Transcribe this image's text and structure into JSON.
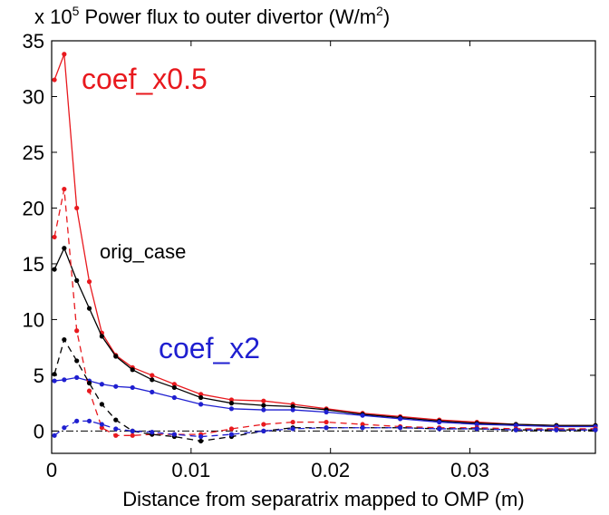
{
  "chart_data": {
    "type": "line",
    "title_parts": [
      "x 10",
      "5",
      " Power flux to outer divertor (W/m",
      "2",
      ")"
    ],
    "x_label": "Distance from separatrix mapped to OMP (m)",
    "x": [
      0.0002,
      0.0009,
      0.0018,
      0.0027,
      0.0036,
      0.0046,
      0.0058,
      0.0072,
      0.0088,
      0.0107,
      0.0129,
      0.0152,
      0.0173,
      0.0197,
      0.0223,
      0.025,
      0.0278,
      0.0305,
      0.0333,
      0.0362,
      0.039
    ],
    "series": [
      {
        "color": "#e8191e",
        "dashed": false,
        "values": [
          31.5,
          33.8,
          20,
          13.4,
          8.8,
          6.8,
          5.7,
          5.0,
          4.2,
          3.3,
          2.8,
          2.7,
          2.4,
          2.0,
          1.6,
          1.3,
          1.0,
          0.8,
          0.6,
          0.5,
          0.5
        ]
      },
      {
        "color": "#000000",
        "dashed": false,
        "values": [
          14.5,
          16.4,
          13.5,
          11,
          8.5,
          6.7,
          5.5,
          4.6,
          3.9,
          3.0,
          2.5,
          2.3,
          2.2,
          1.9,
          1.5,
          1.2,
          0.9,
          0.7,
          0.6,
          0.5,
          0.5
        ]
      },
      {
        "color": "#1f1fd0",
        "dashed": false,
        "values": [
          4.5,
          4.6,
          4.8,
          4.5,
          4.2,
          4.0,
          3.9,
          3.5,
          3.0,
          2.4,
          2.0,
          1.9,
          1.9,
          1.7,
          1.4,
          1.1,
          0.8,
          0.6,
          0.5,
          0.4,
          0.4
        ]
      },
      {
        "color": "#e8191e",
        "dashed": true,
        "values": [
          17.4,
          21.7,
          9,
          3.6,
          0.3,
          -0.4,
          -0.4,
          -0.3,
          -0.3,
          -0.3,
          0.2,
          0.6,
          0.8,
          0.8,
          0.6,
          0.4,
          0.3,
          0.3,
          0.2,
          0.2,
          0.2
        ]
      },
      {
        "color": "#000000",
        "dashed": true,
        "values": [
          5.1,
          8.2,
          6.3,
          4.3,
          2.4,
          1.0,
          0,
          -0.3,
          -0.5,
          -0.9,
          -0.5,
          0.0,
          0.3,
          0.3,
          0.3,
          0.3,
          0.2,
          0.2,
          0.1,
          0.1,
          0.1
        ]
      },
      {
        "color": "#1f1fd0",
        "dashed": true,
        "values": [
          -0.4,
          0.3,
          0.9,
          0.9,
          0.6,
          0.2,
          0,
          -0.1,
          -0.3,
          -0.5,
          -0.3,
          0,
          0.2,
          0.3,
          0.3,
          0.3,
          0.2,
          0.2,
          0.1,
          0.1,
          0.1
        ]
      }
    ],
    "annotations": [
      {
        "text": "coef_x0.5",
        "color": "#e8191e"
      },
      {
        "text": "orig_case",
        "color": "#000000"
      },
      {
        "text": "coef_x2",
        "color": "#1f1fd0"
      }
    ],
    "reference_line": 0,
    "xlim": [
      0,
      0.039
    ],
    "xticks": [
      0,
      0.01,
      0.02,
      0.03
    ],
    "ylim": [
      -2,
      35
    ],
    "yticks": [
      0,
      5,
      10,
      15,
      20,
      25,
      30,
      35
    ]
  }
}
